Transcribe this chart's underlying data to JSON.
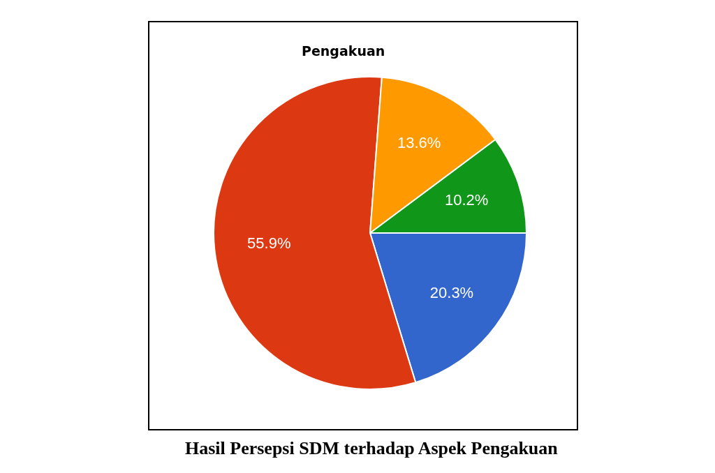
{
  "chart_data": {
    "type": "pie",
    "title": "Pengakuan",
    "categories": [
      null,
      null,
      null,
      null
    ],
    "values": [
      20.3,
      55.9,
      13.6,
      10.2
    ],
    "colors": [
      "#3366cc",
      "#dc3912",
      "#ff9900",
      "#109618"
    ],
    "value_labels": [
      "20.3%",
      "55.9%",
      "13.6%",
      "10.2%"
    ],
    "legend": false,
    "annotations": [
      "Hasil Persepsi SDM terhadap Aspek Pengakuan"
    ]
  }
}
